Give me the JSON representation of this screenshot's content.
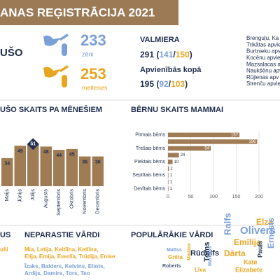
{
  "header": {
    "title": "ANAS REĢISTRĀCIJA 2021"
  },
  "births": {
    "label": "UŠO",
    "boys": {
      "count": 233,
      "label": "zēni"
    },
    "girls": {
      "count": 253,
      "label": "meitenes"
    }
  },
  "valmiera": {
    "title": "VALMIERA",
    "total": 291,
    "boys": 141,
    "girls": 150
  },
  "unions": {
    "title": "Apvienībās kopā",
    "total": 195,
    "boys": 92,
    "girls": 103
  },
  "punctuation": {
    "open": "(",
    "slash": "/",
    "close": ")"
  },
  "union_list": [
    "Brenguļu, Ka",
    "Trikātas apvie",
    "Burtnieku apv",
    "Kocēnu apvien",
    "Mazsalacas a",
    "Naukšēnu apv",
    "Rūjienas apv",
    "Strenču apvie"
  ],
  "chart_data": [
    {
      "type": "bar",
      "title": "UŠO SKAITS PA MĒNEŠIEM",
      "categories": [
        "Maijs",
        "Jūnijs",
        "Jūlijs",
        "Augusts",
        "Septembris",
        "Oktobris",
        "Novembris",
        "Decembris"
      ],
      "values": [
        34,
        49,
        51,
        48,
        44,
        45,
        36,
        36
      ],
      "color": "#a07c55",
      "highlight_color": "#1f2e4d"
    },
    {
      "type": "hbar",
      "title": "BĒRNU SKAITS MAMMAI",
      "categories": [
        "Pirmais bērns",
        null,
        "Trešais bērns",
        null,
        "Piektais bērns",
        null,
        "Septītais bērns",
        null,
        "Devītais bērns"
      ],
      "values": [
        157,
        196,
        94,
        24,
        10,
        2,
        1,
        1,
        1
      ],
      "color": "#a07c55",
      "xlim": [
        0,
        220
      ],
      "xticks": [
        0,
        50,
        100,
        150,
        200
      ],
      "grid": true
    }
  ],
  "left_section": {
    "title": "US",
    "names": [
      "uši"
    ]
  },
  "unusual_names": {
    "title": "NEPARASTIE VĀRDI",
    "girls": [
      "Mia, Letija, Keitlīna, Ketlīna,",
      "Elija, Emija, Everlīa, Trūdija, Enise"
    ],
    "boys": [
      "Īzaks, Balders, Kelvins, Eliots,",
      "Ardijs, Damirs, Tors, Teo"
    ]
  },
  "popular_names": {
    "title": "POPULĀRĀKIE VĀRDI",
    "words": [
      {
        "text": "Elza",
        "color": "#e8a520"
      },
      {
        "text": "Olivers",
        "color": "#7b9fd6"
      },
      {
        "text": "Ralfs",
        "color": "#7b9fd6"
      },
      {
        "text": "Emīlija",
        "color": "#e8a520"
      },
      {
        "text": "Dārta",
        "color": "#e8a520"
      },
      {
        "text": "Rūdolfs",
        "color": "#1f2e4d"
      },
      {
        "text": "Matīss",
        "color": "#7b9fd6"
      },
      {
        "text": "Grēta",
        "color": "#e8a520"
      },
      {
        "text": "Roberts",
        "color": "#4a5a78"
      },
      {
        "text": "Madara",
        "color": "#e8a520"
      },
      {
        "text": "Līva",
        "color": "#e8a520"
      },
      {
        "text": "Toms",
        "color": "#1f2e4d"
      },
      {
        "text": "Markuss",
        "color": "#7b9fd6"
      },
      {
        "text": "Kate",
        "color": "#e8a520"
      },
      {
        "text": "Pauls",
        "color": "#1f2e4d"
      },
      {
        "text": "Elizabete",
        "color": "#e8a520"
      },
      {
        "text": "Ernests",
        "color": "#7b9fd6"
      }
    ]
  }
}
